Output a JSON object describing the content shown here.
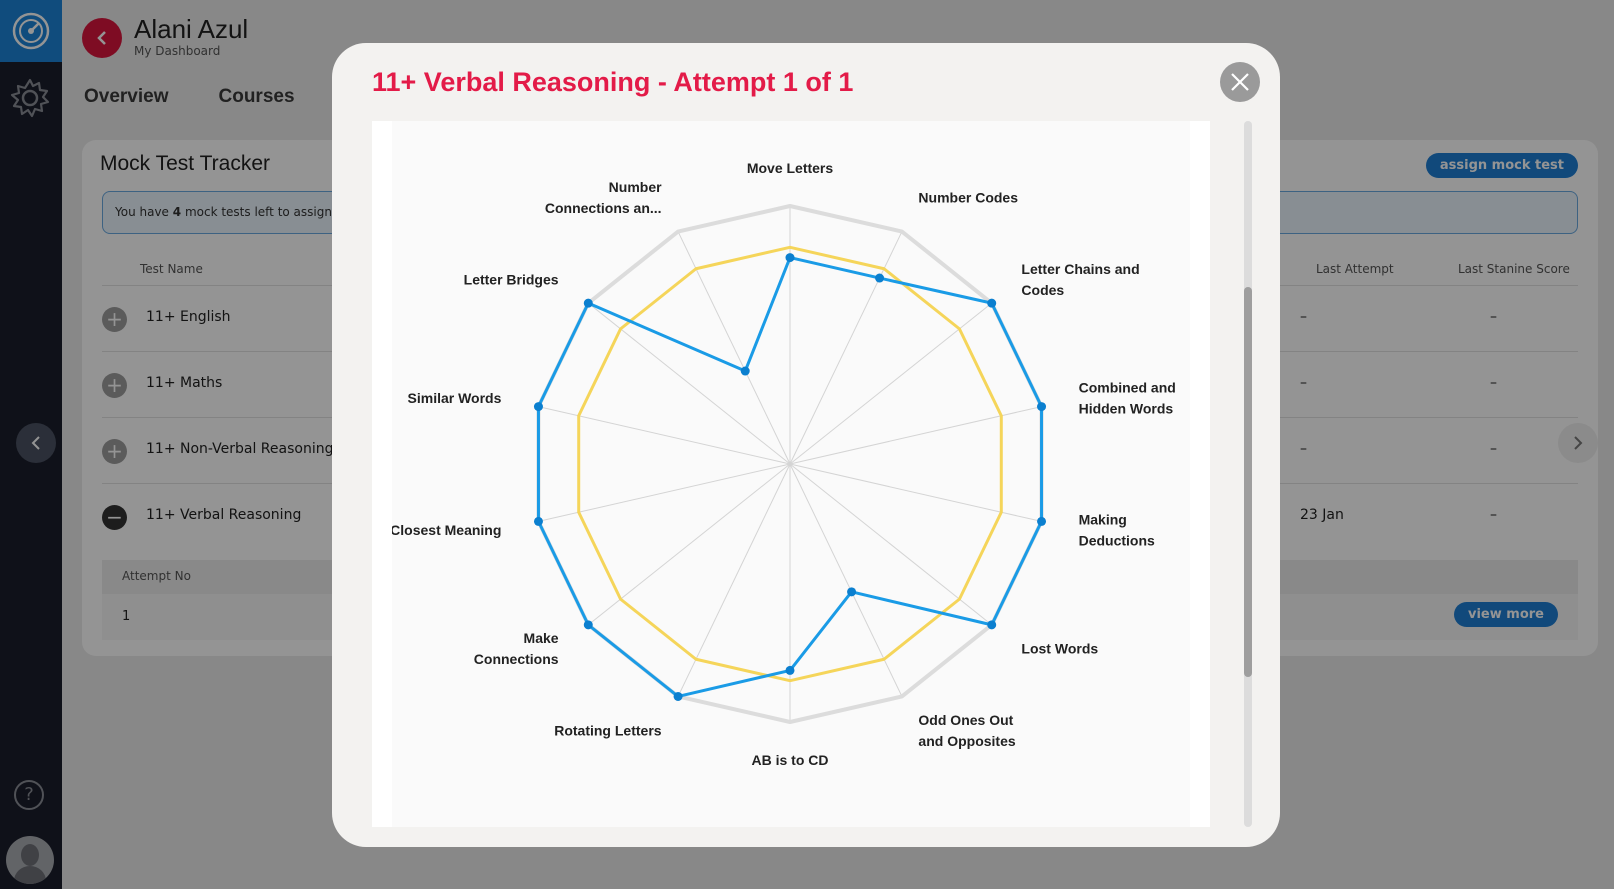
{
  "header": {
    "user_name": "Alani Azul",
    "subtitle": "My Dashboard"
  },
  "tabs": [
    {
      "label": "Overview"
    },
    {
      "label": "Courses"
    }
  ],
  "tracker": {
    "title": "Mock Test Tracker",
    "assign_label": "assign mock test",
    "notice_prefix": "You have ",
    "notice_count": "4",
    "notice_suffix": " mock tests left to assign b",
    "columns": {
      "test_name": "Test Name",
      "last_attempt": "Last Attempt",
      "last_stanine": "Last Stanine Score"
    },
    "rows": [
      {
        "name": "11+ English",
        "last_attempt": "–",
        "score": "–",
        "toggle": "+"
      },
      {
        "name": "11+ Maths",
        "last_attempt": "–",
        "score": "–",
        "toggle": "+"
      },
      {
        "name": "11+ Non-Verbal Reasoning",
        "last_attempt": "–",
        "score": "–",
        "toggle": "+"
      },
      {
        "name": "11+ Verbal Reasoning",
        "last_attempt": "23 Jan",
        "score": "–",
        "toggle": "−"
      }
    ],
    "attempt_head": "Attempt No",
    "attempt_no": "1",
    "view_more_label": "view more"
  },
  "modal": {
    "title": "11+ Verbal Reasoning - Attempt 1 of 1",
    "close_icon": "close-icon"
  },
  "colors": {
    "accent": "#e31b48",
    "primary": "#1e7fd4",
    "attempt_series": "#1a9be6",
    "average_series": "#f5d55a",
    "max_series": "#dcdcdc"
  },
  "chart_data": {
    "type": "radar",
    "categories": [
      "Move Letters",
      "Number Codes",
      "Letter Chains and Codes",
      "Combined and Hidden Words",
      "Making Deductions",
      "Lost Words",
      "Odd Ones Out and Opposites",
      "AB is to CD",
      "Rotating Letters",
      "Make Connections",
      "Closest Meaning",
      "Similar Words",
      "Letter Bridges",
      "Number Connections an..."
    ],
    "category_lines": [
      [
        "Move Letters"
      ],
      [
        "Number Codes"
      ],
      [
        "Letter Chains and",
        "Codes"
      ],
      [
        "Combined and",
        "Hidden Words"
      ],
      [
        "Making",
        "Deductions"
      ],
      [
        "Lost Words"
      ],
      [
        "Odd Ones Out",
        "and Opposites"
      ],
      [
        "AB is to CD"
      ],
      [
        "Rotating Letters"
      ],
      [
        "Make",
        "Connections"
      ],
      [
        "Closest Meaning"
      ],
      [
        "Similar Words"
      ],
      [
        "Letter Bridges"
      ],
      [
        "Number",
        "Connections an..."
      ]
    ],
    "series": [
      {
        "values": [
          100,
          100,
          100,
          100,
          100,
          100,
          100,
          100,
          100,
          100,
          100,
          100,
          100,
          100
        ]
      },
      {
        "values": [
          84,
          84,
          84,
          84,
          84,
          84,
          84,
          84,
          84,
          84,
          84,
          84,
          84,
          84
        ]
      },
      {
        "values": [
          80,
          80,
          100,
          100,
          100,
          100,
          55,
          80,
          100,
          100,
          100,
          100,
          100,
          40
        ]
      }
    ],
    "range": [
      0,
      100
    ]
  }
}
